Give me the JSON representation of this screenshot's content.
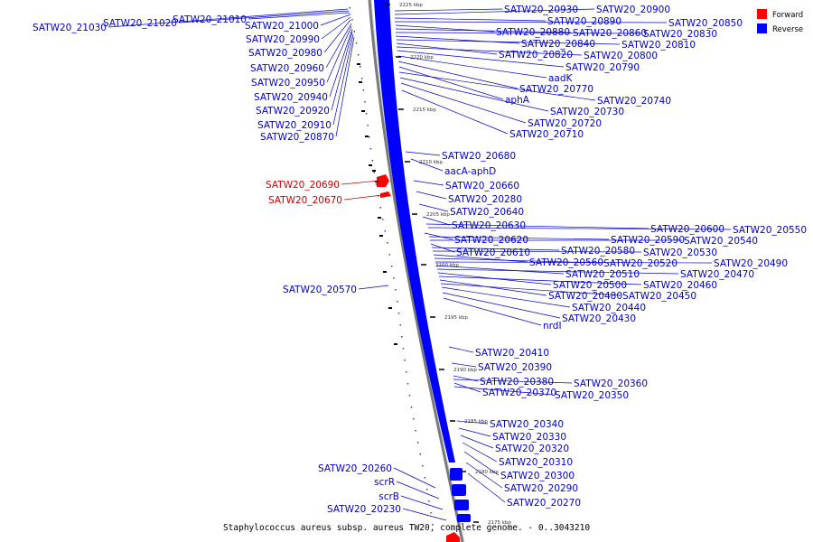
{
  "caption": "Staphylococcus aureus subsp. aureus TW20, complete genome. - 0..3043210",
  "legend": [
    {
      "label": "Forward",
      "color": "#ff0000"
    },
    {
      "label": "Reverse",
      "color": "#0000ff"
    }
  ],
  "colors": {
    "forward": "#ff0000",
    "reverse": "#0000ff",
    "backbone": "#999999",
    "text_forward": "#cc0000",
    "text_reverse": "#0000cc"
  },
  "ticks": [
    "2225 kbp",
    "2220 kbp",
    "2215 kbp",
    "2210 kbp",
    "2205 kbp",
    "2200 kbp",
    "2195 kbp",
    "2190 kbp",
    "2185 kbp",
    "2180 kbp",
    "2175 kbp"
  ],
  "left_labels": [
    "SATW20_21030",
    "SATW20_21020",
    "SATW20_21010",
    "SATW20_21000",
    "SATW20_20990",
    "SATW20_20980",
    "SATW20_20960",
    "SATW20_20950",
    "SATW20_20940",
    "SATW20_20920",
    "SATW20_20910",
    "SATW20_20870",
    "SATW20_20690",
    "SATW20_20670",
    "SATW20_20570",
    "SATW20_20260",
    "scrR",
    "scrB",
    "SATW20_20230"
  ],
  "right_labels": [
    "SATW20_20930",
    "SATW20_20900",
    "SATW20_20890",
    "SATW20_20850",
    "SATW20_20880",
    "SATW20_20860",
    "SATW20_20830",
    "SATW20_20840",
    "SATW20_20810",
    "SATW20_20820",
    "SATW20_20800",
    "SATW20_20790",
    "aadK",
    "SATW20_20770",
    "aphA",
    "SATW20_20740",
    "SATW20_20730",
    "SATW20_20720",
    "SATW20_20710",
    "SATW20_20680",
    "aacA-aphD",
    "SATW20_20660",
    "SATW20_20280",
    "SATW20_20640",
    "SATW20_20630",
    "SATW20_20600",
    "SATW20_20550",
    "SATW20_20620",
    "SATW20_20590",
    "SATW20_20540",
    "SATW20_20610",
    "SATW20_20580",
    "SATW20_20530",
    "SATW20_20560",
    "SATW20_20520",
    "SATW20_20490",
    "SATW20_20510",
    "SATW20_20470",
    "SATW20_20500",
    "SATW20_20460",
    "SATW20_20480",
    "SATW20_20450",
    "SATW20_20440",
    "SATW20_20430",
    "nrdI",
    "SATW20_20410",
    "SATW20_20390",
    "SATW20_20380",
    "SATW20_20360",
    "SATW20_20370",
    "SATW20_20350",
    "SATW20_20340",
    "SATW20_20330",
    "SATW20_20320",
    "SATW20_20310",
    "SATW20_20300",
    "SATW20_20290",
    "SATW20_20270"
  ]
}
